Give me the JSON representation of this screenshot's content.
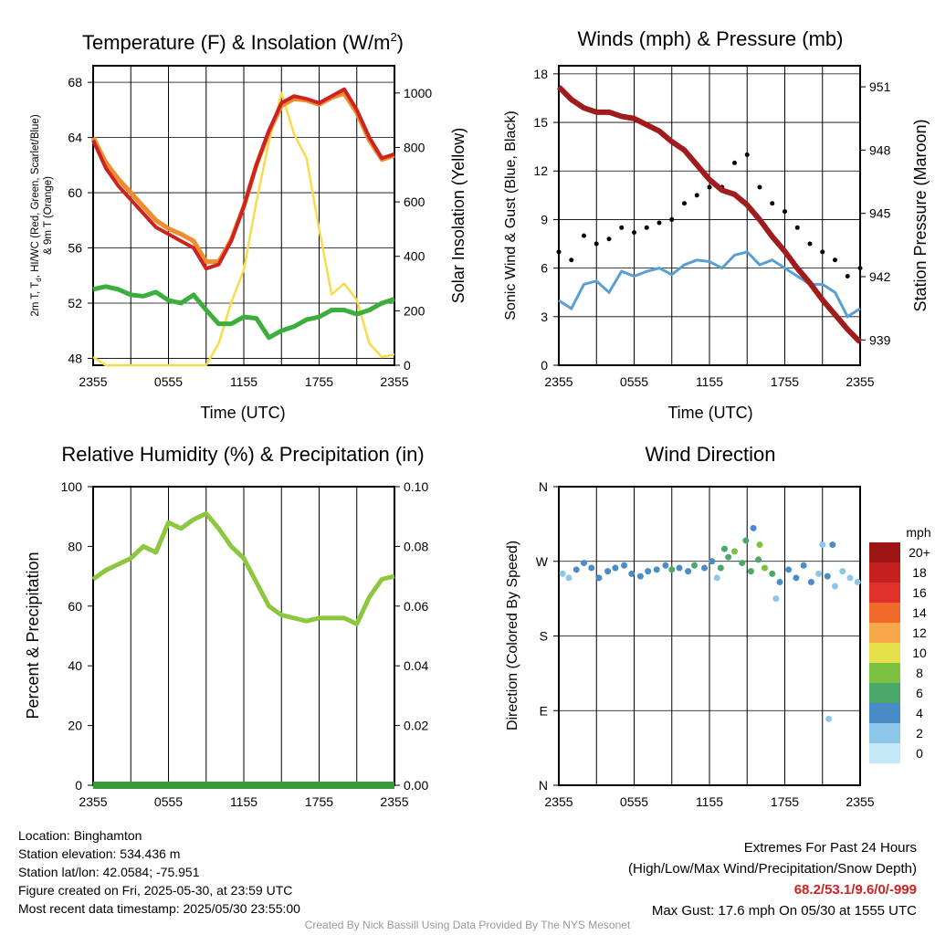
{
  "colors": {
    "temp": "#cc2222",
    "hiwc": "#cc2222",
    "temp9m": "#f08c2a",
    "dew": "#3cae3c",
    "solar": "#f7dc4a",
    "wind": "#5a9fd4",
    "gust": "#000000",
    "pressure": "#a01c1c",
    "rh": "#8dc63f",
    "precip": "#3a9a3a"
  },
  "xticks": [
    "2355",
    "0555",
    "1155",
    "1755",
    "2355"
  ],
  "panels": {
    "temp": {
      "title": "Temperature (F) & Insolation (W/m",
      "title_sup": "2",
      "title_end": ")",
      "ylabel_line1": "2m T, T",
      "ylabel_sub": "d",
      "ylabel_line1_end": ", HI/WC (Red, Green, Scarlet/Blue)",
      "ylabel_line2": "& 9m T (Orange)",
      "y2label": "Solar Insolation (Yellow)",
      "xlabel": "Time (UTC)",
      "yticks": [
        "48",
        "52",
        "56",
        "60",
        "64",
        "68"
      ],
      "y2ticks": [
        "0",
        "200",
        "400",
        "600",
        "800",
        "1000"
      ]
    },
    "wind": {
      "title": "Winds (mph) & Pressure (mb)",
      "ylabel": "Sonic Wind & Gust (Blue, Black)",
      "y2label": "Station Pressure (Maroon)",
      "xlabel": "Time (UTC)",
      "yticks": [
        "0",
        "3",
        "6",
        "9",
        "12",
        "15",
        "18"
      ],
      "y2ticks": [
        "939",
        "942",
        "945",
        "948",
        "951"
      ]
    },
    "rh": {
      "title": "Relative Humidity (%) & Precipitation (in)",
      "ylabel": "Percent & Precipitation",
      "yticks": [
        "0",
        "20",
        "40",
        "60",
        "80",
        "100"
      ],
      "y2ticks": [
        "0.00",
        "0.02",
        "0.04",
        "0.06",
        "0.08",
        "0.10"
      ]
    },
    "dir": {
      "title": "Wind Direction",
      "ylabel": "Direction (Colored By Speed)",
      "yticks": [
        "N",
        "E",
        "S",
        "W",
        "N"
      ],
      "legend_title": "mph",
      "legend_labels": [
        "0",
        "2",
        "4",
        "6",
        "8",
        "10",
        "12",
        "14",
        "16",
        "18",
        "20+"
      ],
      "legend_colors": [
        "#c6e9f7",
        "#8cc6e8",
        "#4a8cc8",
        "#4aa86a",
        "#7cc040",
        "#e8e04a",
        "#f7a84a",
        "#f06a2a",
        "#e0302a",
        "#c41e1e",
        "#9c1414"
      ]
    }
  },
  "chart_data": [
    {
      "type": "line",
      "title": "Temperature (F) & Insolation (W/m2)",
      "xlabel": "Time (UTC)",
      "ylabel": "2m T, Td, HI/WC (Red, Green, Scarlet/Blue) & 9m T (Orange)",
      "y2label": "Solar Insolation (Yellow)",
      "x": [
        0,
        1,
        2,
        3,
        4,
        5,
        6,
        7,
        8,
        9,
        10,
        11,
        12,
        13,
        14,
        15,
        16,
        17,
        18,
        19,
        20,
        21,
        22,
        23,
        24
      ],
      "xlim": [
        0,
        24
      ],
      "ylim": [
        47.5,
        69.2
      ],
      "y2lim": [
        0,
        1100
      ],
      "series": [
        {
          "name": "2m T",
          "axis": "left",
          "values": [
            63.8,
            61.8,
            60.5,
            59.5,
            58.5,
            57.5,
            57.0,
            56.5,
            56.0,
            54.5,
            54.8,
            56.5,
            59.0,
            62.0,
            64.5,
            66.5,
            67.0,
            66.8,
            66.5,
            67.0,
            67.5,
            66.0,
            64.0,
            62.5,
            62.8
          ]
        },
        {
          "name": "9m T",
          "axis": "left",
          "values": [
            64.0,
            62.2,
            61.0,
            60.0,
            59.0,
            58.0,
            57.4,
            57.0,
            56.5,
            55.0,
            55.0,
            56.6,
            59.0,
            62.0,
            64.4,
            66.3,
            66.8,
            66.7,
            66.4,
            66.9,
            67.2,
            65.8,
            63.8,
            62.4,
            62.7
          ]
        },
        {
          "name": "Td",
          "axis": "left",
          "values": [
            53.0,
            53.2,
            53.0,
            52.6,
            52.5,
            52.8,
            52.2,
            52.0,
            52.6,
            51.5,
            50.5,
            50.5,
            51.0,
            50.9,
            49.5,
            50.0,
            50.3,
            50.8,
            51.0,
            51.5,
            51.5,
            51.2,
            51.5,
            52.0,
            52.3
          ]
        },
        {
          "name": "Solar Insolation",
          "axis": "right",
          "values": [
            30,
            0,
            0,
            0,
            0,
            0,
            0,
            0,
            0,
            0,
            80,
            230,
            350,
            600,
            820,
            1000,
            850,
            760,
            500,
            260,
            300,
            240,
            80,
            30,
            40
          ]
        }
      ]
    },
    {
      "type": "line",
      "title": "Winds (mph) & Pressure (mb)",
      "xlabel": "Time (UTC)",
      "ylabel": "Sonic Wind & Gust (Blue, Black)",
      "y2label": "Station Pressure (Maroon)",
      "x": [
        0,
        1,
        2,
        3,
        4,
        5,
        6,
        7,
        8,
        9,
        10,
        11,
        12,
        13,
        14,
        15,
        16,
        17,
        18,
        19,
        20,
        21,
        22,
        23,
        24
      ],
      "xlim": [
        0,
        24
      ],
      "ylim": [
        0,
        18.5
      ],
      "y2lim": [
        937.8,
        952.0
      ],
      "series": [
        {
          "name": "Sonic Wind",
          "axis": "left",
          "values": [
            4.0,
            3.5,
            5.0,
            5.2,
            4.5,
            5.8,
            5.5,
            5.8,
            6.0,
            5.6,
            6.2,
            6.5,
            6.4,
            6.0,
            6.8,
            7.0,
            6.2,
            6.5,
            6.0,
            5.5,
            5.0,
            5.0,
            4.5,
            3.0,
            3.5
          ]
        },
        {
          "name": "Gust",
          "axis": "left",
          "values": [
            7.0,
            6.5,
            8.0,
            7.5,
            7.8,
            8.5,
            8.2,
            8.5,
            8.8,
            9.0,
            10.0,
            10.5,
            11.0,
            11.0,
            12.5,
            13.0,
            11.0,
            10.0,
            9.5,
            8.5,
            7.5,
            7.0,
            6.5,
            5.5,
            6.0
          ]
        },
        {
          "name": "Station Pressure",
          "axis": "right",
          "values": [
            951.0,
            950.4,
            950.0,
            949.8,
            949.8,
            949.6,
            949.5,
            949.2,
            948.9,
            948.4,
            948.0,
            947.3,
            946.6,
            946.1,
            945.9,
            945.4,
            944.7,
            943.9,
            943.2,
            942.4,
            941.7,
            940.9,
            940.2,
            939.5,
            938.9
          ]
        }
      ]
    },
    {
      "type": "line",
      "title": "Relative Humidity (%) & Precipitation (in)",
      "ylabel": "Percent & Precipitation",
      "x": [
        0,
        1,
        2,
        3,
        4,
        5,
        6,
        7,
        8,
        9,
        10,
        11,
        12,
        13,
        14,
        15,
        16,
        17,
        18,
        19,
        20,
        21,
        22,
        23,
        24
      ],
      "xlim": [
        0,
        24
      ],
      "ylim": [
        0,
        100
      ],
      "y2lim": [
        0,
        0.1
      ],
      "series": [
        {
          "name": "RH",
          "axis": "left",
          "values": [
            69,
            72,
            74,
            76,
            80,
            78,
            88,
            86,
            89,
            91,
            86,
            80,
            76,
            68,
            60,
            57,
            56,
            55,
            56,
            56,
            56,
            54,
            63,
            69,
            70
          ]
        },
        {
          "name": "Precipitation",
          "axis": "right",
          "values": [
            0,
            0,
            0,
            0,
            0,
            0,
            0,
            0,
            0,
            0,
            0,
            0,
            0,
            0,
            0,
            0,
            0,
            0,
            0,
            0,
            0,
            0,
            0,
            0,
            0
          ]
        }
      ]
    },
    {
      "type": "scatter",
      "title": "Wind Direction",
      "ylabel": "Direction (Colored By Speed)",
      "xlim": [
        0,
        24
      ],
      "ylim": [
        0,
        360
      ],
      "points": [
        {
          "x": 0.3,
          "y": 255,
          "s": 3
        },
        {
          "x": 0.8,
          "y": 250,
          "s": 3
        },
        {
          "x": 1.4,
          "y": 260,
          "s": 4
        },
        {
          "x": 2.0,
          "y": 268,
          "s": 5
        },
        {
          "x": 2.6,
          "y": 262,
          "s": 5
        },
        {
          "x": 3.2,
          "y": 250,
          "s": 4
        },
        {
          "x": 3.9,
          "y": 258,
          "s": 4
        },
        {
          "x": 4.5,
          "y": 262,
          "s": 5
        },
        {
          "x": 5.2,
          "y": 265,
          "s": 5
        },
        {
          "x": 5.8,
          "y": 255,
          "s": 4
        },
        {
          "x": 6.5,
          "y": 252,
          "s": 4
        },
        {
          "x": 7.1,
          "y": 258,
          "s": 4
        },
        {
          "x": 7.8,
          "y": 260,
          "s": 5
        },
        {
          "x": 8.5,
          "y": 265,
          "s": 5
        },
        {
          "x": 9.0,
          "y": 260,
          "s": 6
        },
        {
          "x": 9.6,
          "y": 262,
          "s": 5
        },
        {
          "x": 10.3,
          "y": 258,
          "s": 5
        },
        {
          "x": 10.8,
          "y": 265,
          "s": 6
        },
        {
          "x": 11.6,
          "y": 262,
          "s": 5
        },
        {
          "x": 12.2,
          "y": 270,
          "s": 5
        },
        {
          "x": 12.9,
          "y": 262,
          "s": 6
        },
        {
          "x": 13.5,
          "y": 275,
          "s": 7
        },
        {
          "x": 14.0,
          "y": 282,
          "s": 9
        },
        {
          "x": 14.6,
          "y": 268,
          "s": 7
        },
        {
          "x": 15.3,
          "y": 258,
          "s": 6
        },
        {
          "x": 15.9,
          "y": 272,
          "s": 7
        },
        {
          "x": 16.4,
          "y": 262,
          "s": 8
        },
        {
          "x": 17.0,
          "y": 255,
          "s": 6
        },
        {
          "x": 17.6,
          "y": 245,
          "s": 5
        },
        {
          "x": 18.3,
          "y": 260,
          "s": 5
        },
        {
          "x": 18.9,
          "y": 250,
          "s": 4
        },
        {
          "x": 19.5,
          "y": 265,
          "s": 5
        },
        {
          "x": 20.1,
          "y": 245,
          "s": 4
        },
        {
          "x": 20.7,
          "y": 255,
          "s": 3
        },
        {
          "x": 21.4,
          "y": 252,
          "s": 4
        },
        {
          "x": 22.0,
          "y": 240,
          "s": 3
        },
        {
          "x": 22.6,
          "y": 258,
          "s": 3
        },
        {
          "x": 23.2,
          "y": 250,
          "s": 3
        },
        {
          "x": 23.8,
          "y": 245,
          "s": 2
        },
        {
          "x": 16.0,
          "y": 290,
          "s": 8
        },
        {
          "x": 17.3,
          "y": 225,
          "s": 2
        },
        {
          "x": 21.0,
          "y": 290,
          "s": 3
        },
        {
          "x": 21.8,
          "y": 290,
          "s": 4
        },
        {
          "x": 21.5,
          "y": 80,
          "s": 2
        },
        {
          "x": 15.5,
          "y": 310,
          "s": 4
        },
        {
          "x": 14.9,
          "y": 295,
          "s": 6
        },
        {
          "x": 13.2,
          "y": 285,
          "s": 6
        },
        {
          "x": 12.6,
          "y": 250,
          "s": 3
        }
      ]
    }
  ],
  "info": {
    "location": "Location: Binghamton",
    "elevation": "Station elevation: 534.436 m",
    "latlon": "Station lat/lon: 42.0584; -75.951",
    "created": "Figure created on Fri, 2025-05-30, at 23:59 UTC",
    "recent": "Most recent data timestamp: 2025/05/30 23:55:00"
  },
  "extremes": {
    "title": "Extremes For Past 24 Hours",
    "subtitle": "(High/Low/Max Wind/Precipitation/Snow Depth)",
    "values": "68.2/53.1/9.6/0/-999",
    "gust": "Max Gust: 17.6 mph On 05/30 at 1555 UTC"
  },
  "credit": "Created By Nick Bassill Using Data Provided By The NYS Mesonet"
}
